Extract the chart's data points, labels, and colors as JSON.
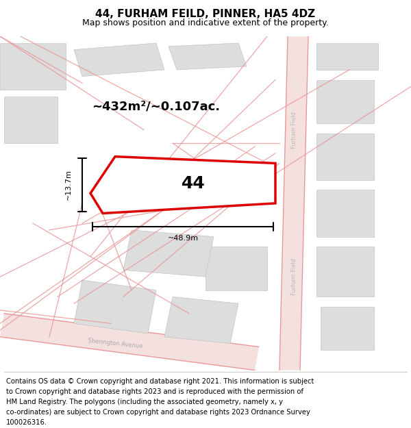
{
  "title": "44, FURHAM FEILD, PINNER, HA5 4DZ",
  "subtitle": "Map shows position and indicative extent of the property.",
  "footer_lines": [
    "Contains OS data © Crown copyright and database right 2021. This information is subject",
    "to Crown copyright and database rights 2023 and is reproduced with the permission of",
    "HM Land Registry. The polygons (including the associated geometry, namely x, y",
    "co-ordinates) are subject to Crown copyright and database rights 2023 Ordnance Survey",
    "100026316."
  ],
  "area_label": "~432m²/~0.107ac.",
  "width_label": "~48.9m",
  "height_label": "~13.7m",
  "plot_number": "44",
  "bg_color": "#ffffff",
  "road_fill_color": "#f5e0e0",
  "building_fill": "#dddddd",
  "road_line_color": "#e89898",
  "highlight_color": "#dd0000",
  "title_fontsize": 11,
  "subtitle_fontsize": 9,
  "footer_fontsize": 7.2
}
